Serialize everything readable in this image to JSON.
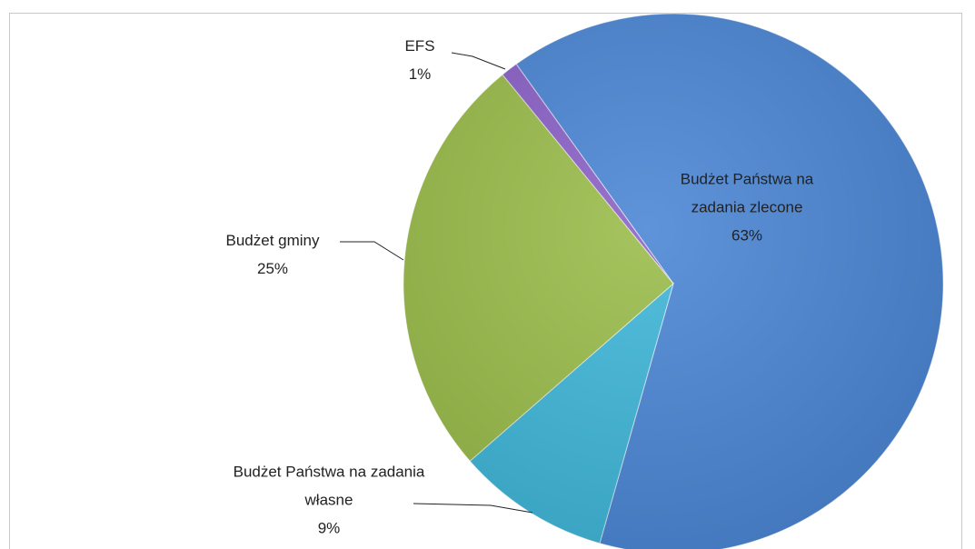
{
  "chart_data": {
    "type": "pie",
    "categories": [
      "Budżet Państwa na zadania zlecone",
      "Budżet Państwa na zadania własne",
      "Budżet gminy",
      "EFS"
    ],
    "values": [
      63,
      9,
      25,
      1
    ],
    "value_labels": [
      "63%",
      "9%",
      "25%",
      "1%"
    ],
    "colors": [
      "#4a85d4",
      "#3db6d8",
      "#99bb48",
      "#8a60c6"
    ]
  }
}
